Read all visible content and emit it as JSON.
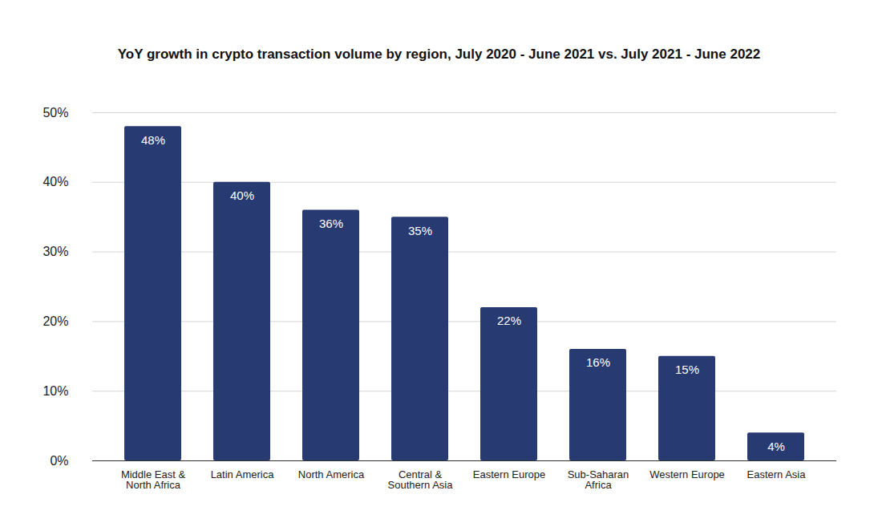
{
  "chart_data": {
    "type": "bar",
    "title": "YoY growth in crypto transaction volume by region, July 2020 - June 2021 vs. July 2021 - June 2022",
    "categories": [
      "Middle East & North Africa",
      "Latin America",
      "North America",
      "Central & Southern Asia",
      "Eastern Europe",
      "Sub-Saharan Africa",
      "Western Europe",
      "Eastern Asia"
    ],
    "values": [
      48,
      40,
      36,
      35,
      22,
      16,
      15,
      4
    ],
    "value_labels": [
      "48%",
      "40%",
      "36%",
      "35%",
      "22%",
      "16%",
      "15%",
      "4%"
    ],
    "color": "#283a72",
    "ylim": [
      0,
      50
    ],
    "yticks": [
      {
        "value": 0,
        "label": "0%"
      },
      {
        "value": 10,
        "label": "10%"
      },
      {
        "value": 20,
        "label": "20%"
      },
      {
        "value": 30,
        "label": "30%"
      },
      {
        "value": 40,
        "label": "40%"
      },
      {
        "value": 50,
        "label": "50%"
      }
    ],
    "grid": true,
    "data_labels": true
  }
}
